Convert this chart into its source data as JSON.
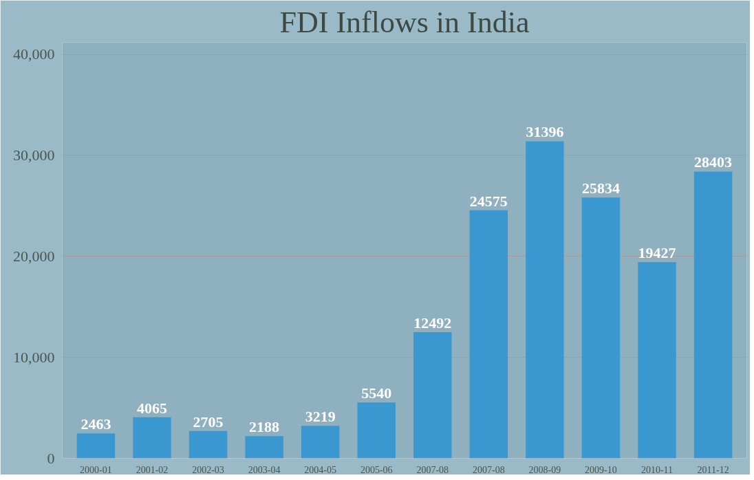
{
  "chart_data": {
    "type": "bar",
    "title": "FDI Inflows in India",
    "categories": [
      "2000-01",
      "2001-02",
      "2002-03",
      "2003-04",
      "2004-05",
      "2005-06",
      "2007-08",
      "2007-08",
      "2008-09",
      "2009-10",
      "2010-11",
      "2011-12"
    ],
    "values": [
      2463,
      4065,
      2705,
      2188,
      3219,
      5540,
      12492,
      24575,
      31396,
      25834,
      19427,
      28403
    ],
    "color": "#3a97cf",
    "ylim": [
      0,
      40000
    ],
    "yticks": [
      {
        "value": 0,
        "label": "0"
      },
      {
        "value": 10000,
        "label": "10,000"
      },
      {
        "value": 20000,
        "label": "20,000"
      },
      {
        "value": 30000,
        "label": "30,000"
      },
      {
        "value": 40000,
        "label": "40,000"
      }
    ],
    "grid": "y",
    "data_labels": true
  }
}
